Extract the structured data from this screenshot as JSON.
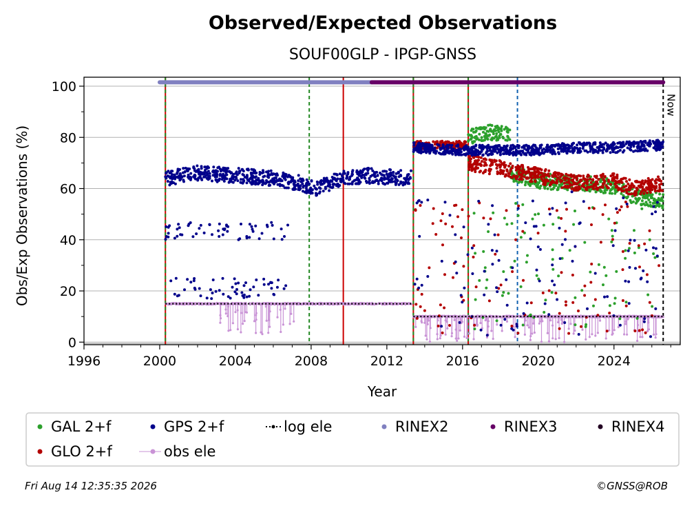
{
  "chart_data": {
    "type": "scatter",
    "title": "Observed/Expected Observations",
    "subtitle": "SOUF00GLP - IPGP-GNSS",
    "xlabel": "Year",
    "ylabel": "Obs/Exp Observations (%)",
    "xlim": [
      1996,
      2027.5
    ],
    "ylim": [
      -1,
      103.5
    ],
    "xticks": [
      1996,
      2000,
      2004,
      2008,
      2012,
      2016,
      2020,
      2024
    ],
    "yticks": [
      0,
      20,
      40,
      60,
      80,
      100
    ],
    "grid": "horizontal",
    "legend_position": "bottom",
    "now_label": "Now",
    "now_x": 2026.6,
    "vertical_events": [
      {
        "x": 2000.3,
        "color": "#cc0000",
        "style": "solid"
      },
      {
        "x": 2000.3,
        "color": "#228822",
        "style": "dashed"
      },
      {
        "x": 2007.9,
        "color": "#228822",
        "style": "dashed"
      },
      {
        "x": 2009.7,
        "color": "#cc0000",
        "style": "solid"
      },
      {
        "x": 2013.4,
        "color": "#cc0000",
        "style": "solid"
      },
      {
        "x": 2013.4,
        "color": "#228822",
        "style": "dashed"
      },
      {
        "x": 2016.3,
        "color": "#cc0000",
        "style": "solid"
      },
      {
        "x": 2016.3,
        "color": "#228822",
        "style": "dashed"
      },
      {
        "x": 2018.9,
        "color": "#1060b0",
        "style": "dashed"
      },
      {
        "x": 2026.6,
        "color": "#000000",
        "style": "dashed"
      }
    ],
    "series": [
      {
        "name": "GPS 2+f",
        "color": "#00008b",
        "segments": [
          {
            "x_start": 2000.3,
            "x_end": 2013.3,
            "y": [
              [
                2000.3,
                64
              ],
              [
                2002,
                66
              ],
              [
                2004,
                65
              ],
              [
                2006,
                64
              ],
              [
                2007.5,
                62
              ],
              [
                2008.2,
                60
              ],
              [
                2009.7,
                64
              ],
              [
                2011,
                65
              ],
              [
                2013.3,
                64
              ]
            ],
            "spread": 3
          },
          {
            "x_start": 2013.4,
            "x_end": 2026.6,
            "y": [
              [
                2013.4,
                76
              ],
              [
                2016,
                75
              ],
              [
                2018,
                75
              ],
              [
                2020,
                75
              ],
              [
                2022,
                76
              ],
              [
                2024,
                76
              ],
              [
                2026.6,
                77
              ]
            ],
            "spread": 2
          }
        ],
        "outliers": [
          {
            "x_start": 2000.3,
            "x_end": 2006.8,
            "y_low": 40,
            "y_high": 47
          },
          {
            "x_start": 2000.5,
            "x_end": 2006.8,
            "y_low": 17,
            "y_high": 25
          },
          {
            "x_start": 2013.4,
            "x_end": 2026.5,
            "y_low": 2,
            "y_high": 60
          }
        ]
      },
      {
        "name": "GAL 2+f",
        "color": "#2ca02c",
        "segments": [
          {
            "x_start": 2016.3,
            "x_end": 2018.5,
            "y": [
              [
                2016.3,
                80
              ],
              [
                2017.3,
                82
              ],
              [
                2018.5,
                81
              ]
            ],
            "spread": 3
          },
          {
            "x_start": 2018.5,
            "x_end": 2026.6,
            "y": [
              [
                2018.5,
                66
              ],
              [
                2020,
                63
              ],
              [
                2022,
                62
              ],
              [
                2024,
                61
              ],
              [
                2025,
                57
              ],
              [
                2026.6,
                55
              ]
            ],
            "spread": 3
          }
        ],
        "outliers": [
          {
            "x_start": 2016.3,
            "x_end": 2026.5,
            "y_low": 5,
            "y_high": 55
          }
        ]
      },
      {
        "name": "GLO 2+f",
        "color": "#b30000",
        "segments": [
          {
            "x_start": 2013.4,
            "x_end": 2016.2,
            "y": [
              [
                2013.4,
                77
              ],
              [
                2016.2,
                77
              ]
            ],
            "spread": 1.5
          },
          {
            "x_start": 2016.3,
            "x_end": 2026.6,
            "y": [
              [
                2016.3,
                70
              ],
              [
                2018,
                68
              ],
              [
                2020,
                65
              ],
              [
                2022,
                62
              ],
              [
                2024,
                63
              ],
              [
                2025,
                60
              ],
              [
                2026.6,
                62
              ]
            ],
            "spread": 3
          }
        ],
        "outliers": [
          {
            "x_start": 2013.4,
            "x_end": 2026.5,
            "y_low": 3,
            "y_high": 55
          }
        ]
      },
      {
        "name": "obs ele",
        "color": "#c993d6",
        "segments": [
          {
            "x_start": 2000.3,
            "x_end": 2013.3,
            "y": [
              [
                2000.3,
                15
              ],
              [
                2013.3,
                15
              ]
            ],
            "spread": 0.3
          },
          {
            "x_start": 2013.4,
            "x_end": 2026.6,
            "y": [
              [
                2013.4,
                10
              ],
              [
                2026.6,
                10
              ]
            ],
            "spread": 0.3
          }
        ],
        "outliers": [
          {
            "x_start": 2002.8,
            "x_end": 2007.2,
            "y_low": 3,
            "y_high": 14
          },
          {
            "x_start": 2013.5,
            "x_end": 2026.5,
            "y_low": 0,
            "y_high": 9
          }
        ]
      },
      {
        "name": "log ele",
        "color": "#000000",
        "lines": [
          {
            "x": [
              2000.3,
              2013.4
            ],
            "y": [
              15,
              15
            ]
          },
          {
            "x": [
              2013.4,
              2026.6
            ],
            "y": [
              10,
              10
            ]
          }
        ]
      },
      {
        "name": "RINEX2",
        "color": "#8080c0",
        "bars": [
          {
            "x_start": 2000.0,
            "x_end": 2011.2,
            "y": 101.5
          }
        ]
      },
      {
        "name": "RINEX3",
        "color": "#660066",
        "bars": [
          {
            "x_start": 2011.2,
            "x_end": 2026.6,
            "y": 101.5
          }
        ]
      },
      {
        "name": "RINEX4",
        "color": "#220022",
        "bars": []
      }
    ],
    "legend": [
      {
        "label": "GAL 2+f",
        "color": "#2ca02c",
        "marker": "dot"
      },
      {
        "label": "GPS 2+f",
        "color": "#00008b",
        "marker": "dot"
      },
      {
        "label": "log ele",
        "color": "#000000",
        "marker": "dotted-line"
      },
      {
        "label": "RINEX2",
        "color": "#8080c0",
        "marker": "dot"
      },
      {
        "label": "RINEX3",
        "color": "#660066",
        "marker": "dot"
      },
      {
        "label": "RINEX4",
        "color": "#220022",
        "marker": "dot"
      },
      {
        "label": "GLO 2+f",
        "color": "#b30000",
        "marker": "dot"
      },
      {
        "label": "obs ele",
        "color": "#c993d6",
        "marker": "line-dot"
      }
    ]
  },
  "footer": {
    "timestamp": "Fri Aug 14 12:35:35 2026",
    "credit": "©GNSS@ROB"
  }
}
